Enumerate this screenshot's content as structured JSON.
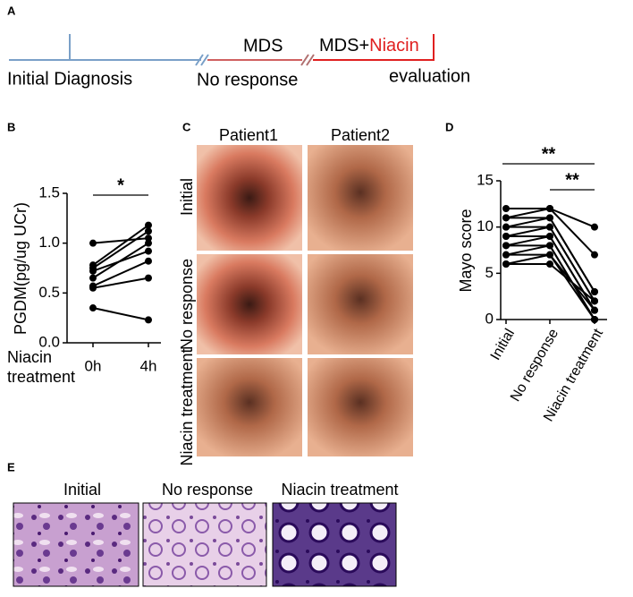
{
  "panels": {
    "a": "A",
    "b": "B",
    "c": "C",
    "d": "D",
    "e": "E"
  },
  "timeline": {
    "initial": "Initial Diagnosis",
    "mds": "MDS",
    "no_response": "No response",
    "mds_plus": "MDS+",
    "niacin": "Niacin",
    "evaluation": "evaluation"
  },
  "chart_data": [
    {
      "type": "line",
      "y_label": "PGDM(pg/ug UCr)",
      "x_label": "Niacin treatment",
      "categories": [
        "0h",
        "4h"
      ],
      "color": "#000000",
      "ylim": [
        0,
        1.5
      ],
      "yticks": [
        {
          "value": 0,
          "label": "0.0"
        },
        0.5,
        {
          "value": 1,
          "label": "1.0"
        },
        1.5
      ],
      "significance": [
        "*"
      ],
      "series": [
        {
          "values": [
            1.0,
            1.05
          ]
        },
        {
          "values": [
            0.78,
            1.18
          ]
        },
        {
          "values": [
            0.75,
            1.12
          ]
        },
        {
          "values": [
            0.72,
            0.92
          ]
        },
        {
          "values": [
            0.65,
            1.0
          ]
        },
        {
          "values": [
            0.57,
            0.82
          ]
        },
        {
          "values": [
            0.55,
            0.65
          ]
        },
        {
          "values": [
            0.35,
            0.23
          ]
        }
      ]
    },
    {
      "type": "line",
      "y_label": "Mayo score",
      "categories": [
        "Initial",
        "No response",
        "Niacin treatment"
      ],
      "color": "#000000",
      "ylim": [
        0,
        15
      ],
      "yticks": [
        0,
        5,
        10,
        15
      ],
      "significance": [
        "**",
        "**"
      ],
      "series": [
        {
          "values": [
            12,
            12,
            10
          ]
        },
        {
          "values": [
            11,
            12,
            7
          ]
        },
        {
          "values": [
            11,
            11,
            3
          ]
        },
        {
          "values": [
            10,
            11,
            3
          ]
        },
        {
          "values": [
            10,
            10,
            2
          ]
        },
        {
          "values": [
            9,
            10,
            2
          ]
        },
        {
          "values": [
            9,
            9,
            1
          ]
        },
        {
          "values": [
            8,
            9,
            1
          ]
        },
        {
          "values": [
            8,
            8,
            0
          ]
        },
        {
          "values": [
            7,
            8,
            0
          ]
        },
        {
          "values": [
            7,
            7,
            0
          ]
        },
        {
          "values": [
            6,
            7,
            1
          ]
        },
        {
          "values": [
            6,
            6,
            2
          ]
        }
      ]
    }
  ],
  "endoscopy": {
    "columns": [
      "Patient1",
      "Patient2"
    ],
    "rows": [
      "Initial",
      "No response",
      "Niacin treatment"
    ]
  },
  "histology": {
    "labels": [
      "Initial",
      "No response",
      "Niacin treatment"
    ]
  }
}
